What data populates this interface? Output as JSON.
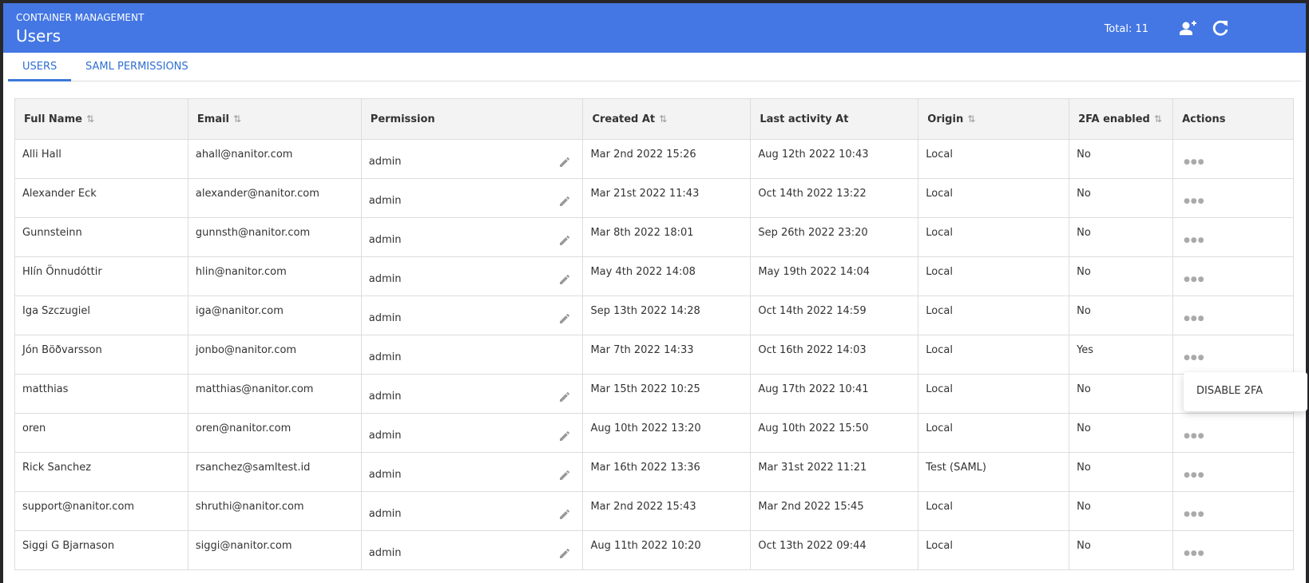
{
  "header": {
    "subtitle": "CONTAINER MANAGEMENT",
    "title": "Users",
    "total": "Total: 11",
    "color": "#4477e3"
  },
  "tabs": [
    {
      "label": "USERS",
      "active": true
    },
    {
      "label": "SAML PERMISSIONS",
      "active": false
    }
  ],
  "columns": [
    "Full Name",
    "Email",
    "Permission",
    "Created At",
    "Last activity At",
    "Origin",
    "2FA enabled",
    "Actions"
  ],
  "sortable": [
    true,
    true,
    false,
    true,
    false,
    true,
    true,
    false
  ],
  "rows": [
    {
      "name": "Alli Hall",
      "email": "ahall@nanitor.com",
      "permission": "admin",
      "editable": true,
      "created": "Mar 2nd 2022 15:26",
      "last": "Aug 12th 2022 10:43",
      "origin": "Local",
      "twofa": "No"
    },
    {
      "name": "Alexander Eck",
      "email": "alexander@nanitor.com",
      "permission": "admin",
      "editable": true,
      "created": "Mar 21st 2022 11:43",
      "last": "Oct 14th 2022 13:22",
      "origin": "Local",
      "twofa": "No"
    },
    {
      "name": "Gunnsteinn",
      "email": "gunnsth@nanitor.com",
      "permission": "admin",
      "editable": true,
      "created": "Mar 8th 2022 18:01",
      "last": "Sep 26th 2022 23:20",
      "origin": "Local",
      "twofa": "No"
    },
    {
      "name": "Hlín Önnudóttir",
      "email": "hlin@nanitor.com",
      "permission": "admin",
      "editable": true,
      "created": "May 4th 2022 14:08",
      "last": "May 19th 2022 14:04",
      "origin": "Local",
      "twofa": "No"
    },
    {
      "name": "Iga Szczugiel",
      "email": "iga@nanitor.com",
      "permission": "admin",
      "editable": true,
      "created": "Sep 13th 2022 14:28",
      "last": "Oct 14th 2022 14:59",
      "origin": "Local",
      "twofa": "No"
    },
    {
      "name": "Jón Böðvarsson",
      "email": "jonbo@nanitor.com",
      "permission": "admin",
      "editable": false,
      "created": "Mar 7th 2022 14:33",
      "last": "Oct 16th 2022 14:03",
      "origin": "Local",
      "twofa": "Yes"
    },
    {
      "name": "matthias",
      "email": "matthias@nanitor.com",
      "permission": "admin",
      "editable": true,
      "created": "Mar 15th 2022 10:25",
      "last": "Aug 17th 2022 10:41",
      "origin": "Local",
      "twofa": "No"
    },
    {
      "name": "oren",
      "email": "oren@nanitor.com",
      "permission": "admin",
      "editable": true,
      "created": "Aug 10th 2022 13:20",
      "last": "Aug 10th 2022 15:50",
      "origin": "Local",
      "twofa": "No"
    },
    {
      "name": "Rick Sanchez",
      "email": "rsanchez@samltest.id",
      "permission": "admin",
      "editable": true,
      "created": "Mar 16th 2022 13:36",
      "last": "Mar 31st 2022 11:21",
      "origin": "Test (SAML)",
      "twofa": "No"
    },
    {
      "name": "support@nanitor.com",
      "email": "shruthi@nanitor.com",
      "permission": "admin",
      "editable": true,
      "created": "Mar 2nd 2022 15:43",
      "last": "Mar 2nd 2022 15:45",
      "origin": "Local",
      "twofa": "No"
    },
    {
      "name": "Siggi G Bjarnason",
      "email": "siggi@nanitor.com",
      "permission": "admin",
      "editable": true,
      "created": "Aug 11th 2022 10:20",
      "last": "Oct 13th 2022 09:44",
      "origin": "Local",
      "twofa": "No"
    }
  ],
  "menu": {
    "item": "DISABLE 2FA",
    "open_row": 5
  }
}
